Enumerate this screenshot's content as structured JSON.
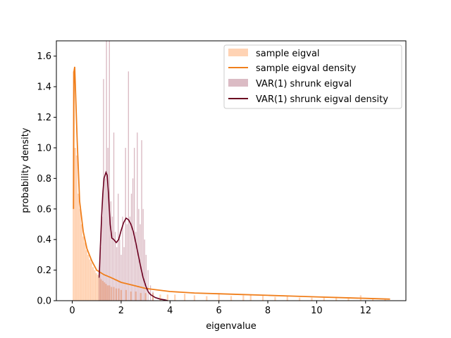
{
  "chart_data": {
    "type": "bar",
    "xlabel": "eigenvalue",
    "ylabel": "probability density",
    "xlim": [
      -0.65,
      13.65
    ],
    "ylim": [
      0,
      1.7
    ],
    "xticks": [
      0,
      2,
      4,
      6,
      8,
      10,
      12
    ],
    "yticks": [
      0.0,
      0.2,
      0.4,
      0.6,
      0.8,
      1.0,
      1.2,
      1.4,
      1.6
    ],
    "grid": false,
    "legend_position": "top-right",
    "series": [
      {
        "name": "sample eigval",
        "kind": "histogram",
        "color": "#ffd3b4",
        "bin_width": 0.065,
        "bins": [
          [
            0.05,
            1.5
          ],
          [
            0.12,
            1.0
          ],
          [
            0.18,
            0.95
          ],
          [
            0.25,
            0.7
          ],
          [
            0.32,
            0.6
          ],
          [
            0.38,
            0.5
          ],
          [
            0.45,
            0.42
          ],
          [
            0.52,
            0.38
          ],
          [
            0.58,
            0.33
          ],
          [
            0.65,
            0.3
          ],
          [
            0.72,
            0.27
          ],
          [
            0.78,
            0.25
          ],
          [
            0.85,
            0.22
          ],
          [
            0.92,
            0.2
          ],
          [
            0.98,
            0.18
          ],
          [
            1.05,
            0.17
          ],
          [
            1.12,
            0.15
          ],
          [
            1.18,
            0.14
          ],
          [
            1.25,
            0.13
          ],
          [
            1.32,
            0.12
          ],
          [
            1.38,
            0.11
          ],
          [
            1.45,
            0.1
          ],
          [
            1.52,
            0.1
          ],
          [
            1.6,
            0.09
          ],
          [
            1.7,
            0.09
          ],
          [
            1.8,
            0.08
          ],
          [
            1.9,
            0.08
          ],
          [
            2.0,
            0.07
          ],
          [
            2.2,
            0.07
          ],
          [
            2.4,
            0.06
          ],
          [
            2.6,
            0.06
          ],
          [
            2.8,
            0.05
          ],
          [
            3.0,
            0.05
          ],
          [
            3.3,
            0.05
          ],
          [
            3.6,
            0.04
          ],
          [
            3.9,
            0.04
          ],
          [
            4.2,
            0.04
          ],
          [
            4.6,
            0.045
          ],
          [
            5.0,
            0.035
          ],
          [
            5.5,
            0.03
          ],
          [
            6.0,
            0.05
          ],
          [
            6.5,
            0.03
          ],
          [
            7.0,
            0.035
          ],
          [
            7.3,
            0.04
          ],
          [
            7.8,
            0.035
          ],
          [
            8.3,
            0.025
          ],
          [
            8.8,
            0.03
          ],
          [
            9.3,
            0.02
          ],
          [
            9.8,
            0.02
          ],
          [
            10.3,
            0.02
          ],
          [
            10.8,
            0.025
          ],
          [
            11.3,
            0.02
          ],
          [
            11.8,
            0.035
          ],
          [
            12.3,
            0.015
          ],
          [
            12.8,
            0.015
          ]
        ]
      },
      {
        "name": "sample eigval density",
        "kind": "line",
        "color": "#f07f1c",
        "x": [
          0.05,
          0.07,
          0.1,
          0.15,
          0.2,
          0.3,
          0.45,
          0.6,
          0.8,
          1.0,
          1.3,
          1.6,
          2.0,
          2.5,
          3.0,
          4.0,
          5.0,
          6.0,
          7.0,
          8.0,
          9.0,
          10.0,
          11.0,
          12.0,
          13.0
        ],
        "y": [
          0.6,
          1.5,
          1.53,
          1.3,
          1.05,
          0.65,
          0.45,
          0.34,
          0.26,
          0.2,
          0.17,
          0.15,
          0.12,
          0.1,
          0.08,
          0.06,
          0.05,
          0.045,
          0.04,
          0.035,
          0.03,
          0.025,
          0.02,
          0.015,
          0.01
        ]
      },
      {
        "name": "VAR(1) shrunk eigval",
        "kind": "histogram",
        "color": "#7d0a2b",
        "alpha": 0.28,
        "bin_width": 0.04,
        "bins": [
          [
            1.1,
            0.2
          ],
          [
            1.16,
            0.35
          ],
          [
            1.22,
            0.55
          ],
          [
            1.28,
            1.45
          ],
          [
            1.34,
            0.8
          ],
          [
            1.4,
            1.7
          ],
          [
            1.46,
            1.0
          ],
          [
            1.52,
            1.7
          ],
          [
            1.58,
            0.65
          ],
          [
            1.64,
            0.55
          ],
          [
            1.7,
            1.1
          ],
          [
            1.76,
            0.45
          ],
          [
            1.82,
            0.35
          ],
          [
            1.88,
            0.7
          ],
          [
            1.94,
            0.4
          ],
          [
            2.0,
            0.3
          ],
          [
            2.06,
            0.55
          ],
          [
            2.12,
            0.35
          ],
          [
            2.18,
            1.0
          ],
          [
            2.24,
            0.5
          ],
          [
            2.3,
            1.5
          ],
          [
            2.36,
            0.55
          ],
          [
            2.42,
            0.7
          ],
          [
            2.48,
            0.8
          ],
          [
            2.54,
            1.0
          ],
          [
            2.6,
            0.45
          ],
          [
            2.66,
            1.1
          ],
          [
            2.72,
            0.6
          ],
          [
            2.78,
            0.5
          ],
          [
            2.84,
            1.05
          ],
          [
            2.9,
            0.6
          ],
          [
            2.96,
            0.4
          ],
          [
            3.02,
            0.3
          ],
          [
            3.1,
            0.2
          ],
          [
            3.2,
            0.1
          ],
          [
            3.3,
            0.06
          ]
        ]
      },
      {
        "name": "VAR(1) shrunk eigval density",
        "kind": "line",
        "color": "#6b0020",
        "x": [
          1.1,
          1.15,
          1.2,
          1.25,
          1.3,
          1.38,
          1.43,
          1.48,
          1.55,
          1.62,
          1.7,
          1.8,
          1.9,
          2.0,
          2.1,
          2.2,
          2.3,
          2.4,
          2.5,
          2.6,
          2.7,
          2.8,
          2.9,
          3.0,
          3.1,
          3.2,
          3.3,
          3.4,
          3.5,
          3.6,
          3.8,
          3.9
        ],
        "y": [
          0.15,
          0.35,
          0.55,
          0.7,
          0.8,
          0.84,
          0.82,
          0.7,
          0.5,
          0.41,
          0.4,
          0.38,
          0.4,
          0.46,
          0.51,
          0.54,
          0.53,
          0.5,
          0.45,
          0.38,
          0.3,
          0.22,
          0.15,
          0.1,
          0.06,
          0.04,
          0.03,
          0.02,
          0.015,
          0.01,
          0.005,
          0.0
        ]
      }
    ]
  }
}
